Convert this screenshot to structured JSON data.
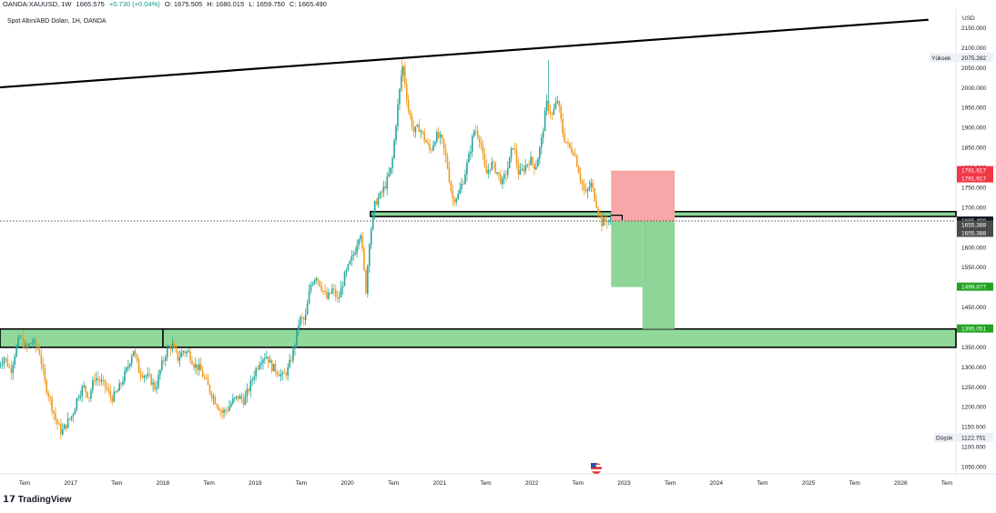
{
  "header": {
    "symbol": "OANDA:XAUUSD, 1W",
    "last": "1665.575",
    "change": "+0.730 (+0.04%)",
    "o": "O: 1675.505",
    "h": "H: 1680.015",
    "l": "L: 1659.750",
    "c": "C: 1665.490"
  },
  "subtitle": "Spot Altın/ABD Doları, 1H, OANDA",
  "brand": "TradingView",
  "colors": {
    "up": "#26a69a",
    "down": "#ef9a20",
    "zone": "#90d99a",
    "stop": "#f7a7a7",
    "target": "#8fd597",
    "trend": "#000000"
  },
  "chart_data": {
    "type": "candlestick",
    "title": "Spot Altın/ABD Doları, 1H, OANDA",
    "currency": "USD",
    "ylim": [
      1040,
      2180
    ],
    "y_ticks": [
      1050,
      1100,
      1150,
      1200,
      1250,
      1300,
      1350,
      1400,
      1450,
      1500,
      1550,
      1600,
      1650,
      1700,
      1750,
      1800,
      1850,
      1900,
      1950,
      2000,
      2050,
      2100,
      2150
    ],
    "y_tick_labels": [
      "1050.000",
      "1100.000",
      "1150.000",
      "1200.000",
      "1250.000",
      "1300.000",
      "1350.000",
      "1400.000",
      "1450.000",
      "1500.000",
      "1550.000",
      "1600.000",
      "1650.000",
      "1700.000",
      "1750.000",
      "1800.000",
      "1850.000",
      "1900.000",
      "1950.000",
      "2000.000",
      "2050.000",
      "2100.000",
      "2150.000"
    ],
    "xlim": [
      2016.2,
      2026.9
    ],
    "x_ticks": [
      {
        "t": 2016.5,
        "label": "Tem"
      },
      {
        "t": 2017.0,
        "label": "2017"
      },
      {
        "t": 2017.5,
        "label": "Tem"
      },
      {
        "t": 2018.0,
        "label": "2018"
      },
      {
        "t": 2018.5,
        "label": "Tem"
      },
      {
        "t": 2019.0,
        "label": "2019"
      },
      {
        "t": 2019.5,
        "label": "Tem"
      },
      {
        "t": 2020.0,
        "label": "2020"
      },
      {
        "t": 2020.5,
        "label": "Tem"
      },
      {
        "t": 2021.0,
        "label": "2021"
      },
      {
        "t": 2021.5,
        "label": "Tem"
      },
      {
        "t": 2022.0,
        "label": "2022"
      },
      {
        "t": 2022.5,
        "label": "Tem"
      },
      {
        "t": 2023.0,
        "label": "2023"
      },
      {
        "t": 2023.5,
        "label": "Tem"
      },
      {
        "t": 2024.0,
        "label": "2024"
      },
      {
        "t": 2024.5,
        "label": "Tem"
      },
      {
        "t": 2025.0,
        "label": "2025"
      },
      {
        "t": 2025.5,
        "label": "Tem"
      },
      {
        "t": 2026.0,
        "label": "2026"
      },
      {
        "t": 2026.5,
        "label": "Tem"
      }
    ],
    "price_path": [
      [
        2016.22,
        1305
      ],
      [
        2016.28,
        1325
      ],
      [
        2016.35,
        1290
      ],
      [
        2016.4,
        1340
      ],
      [
        2016.45,
        1375
      ],
      [
        2016.52,
        1345
      ],
      [
        2016.58,
        1365
      ],
      [
        2016.66,
        1340
      ],
      [
        2016.72,
        1260
      ],
      [
        2016.78,
        1215
      ],
      [
        2016.84,
        1165
      ],
      [
        2016.9,
        1135
      ],
      [
        2016.96,
        1160
      ],
      [
        2017.02,
        1180
      ],
      [
        2017.08,
        1230
      ],
      [
        2017.14,
        1250
      ],
      [
        2017.2,
        1225
      ],
      [
        2017.26,
        1275
      ],
      [
        2017.32,
        1265
      ],
      [
        2017.38,
        1250
      ],
      [
        2017.44,
        1220
      ],
      [
        2017.5,
        1235
      ],
      [
        2017.56,
        1265
      ],
      [
        2017.62,
        1300
      ],
      [
        2017.68,
        1345
      ],
      [
        2017.74,
        1290
      ],
      [
        2017.8,
        1280
      ],
      [
        2017.86,
        1270
      ],
      [
        2017.92,
        1245
      ],
      [
        2017.98,
        1300
      ],
      [
        2018.04,
        1340
      ],
      [
        2018.1,
        1355
      ],
      [
        2018.16,
        1320
      ],
      [
        2018.22,
        1340
      ],
      [
        2018.28,
        1335
      ],
      [
        2018.34,
        1305
      ],
      [
        2018.4,
        1295
      ],
      [
        2018.46,
        1265
      ],
      [
        2018.52,
        1235
      ],
      [
        2018.58,
        1210
      ],
      [
        2018.64,
        1185
      ],
      [
        2018.7,
        1195
      ],
      [
        2018.76,
        1215
      ],
      [
        2018.82,
        1225
      ],
      [
        2018.88,
        1215
      ],
      [
        2018.94,
        1250
      ],
      [
        2019.0,
        1290
      ],
      [
        2019.06,
        1320
      ],
      [
        2019.12,
        1330
      ],
      [
        2019.18,
        1300
      ],
      [
        2019.24,
        1290
      ],
      [
        2019.3,
        1275
      ],
      [
        2019.36,
        1295
      ],
      [
        2019.42,
        1345
      ],
      [
        2019.48,
        1420
      ],
      [
        2019.54,
        1415
      ],
      [
        2019.6,
        1505
      ],
      [
        2019.66,
        1530
      ],
      [
        2019.72,
        1500
      ],
      [
        2019.78,
        1470
      ],
      [
        2019.84,
        1495
      ],
      [
        2019.9,
        1465
      ],
      [
        2019.96,
        1520
      ],
      [
        2020.02,
        1555
      ],
      [
        2020.08,
        1590
      ],
      [
        2020.14,
        1645
      ],
      [
        2020.2,
        1490
      ],
      [
        2020.24,
        1620
      ],
      [
        2020.3,
        1710
      ],
      [
        2020.36,
        1730
      ],
      [
        2020.42,
        1760
      ],
      [
        2020.48,
        1800
      ],
      [
        2020.54,
        1940
      ],
      [
        2020.6,
        2060
      ],
      [
        2020.66,
        1945
      ],
      [
        2020.72,
        1890
      ],
      [
        2020.78,
        1900
      ],
      [
        2020.84,
        1870
      ],
      [
        2020.9,
        1840
      ],
      [
        2020.96,
        1880
      ],
      [
        2021.02,
        1870
      ],
      [
        2021.08,
        1810
      ],
      [
        2021.14,
        1720
      ],
      [
        2021.2,
        1730
      ],
      [
        2021.26,
        1770
      ],
      [
        2021.32,
        1830
      ],
      [
        2021.38,
        1900
      ],
      [
        2021.44,
        1870
      ],
      [
        2021.5,
        1780
      ],
      [
        2021.56,
        1810
      ],
      [
        2021.62,
        1790
      ],
      [
        2021.68,
        1760
      ],
      [
        2021.74,
        1800
      ],
      [
        2021.8,
        1860
      ],
      [
        2021.86,
        1780
      ],
      [
        2021.92,
        1800
      ],
      [
        2021.98,
        1820
      ],
      [
        2022.04,
        1800
      ],
      [
        2022.1,
        1860
      ],
      [
        2022.16,
        1960
      ],
      [
        2022.22,
        1930
      ],
      [
        2022.28,
        1970
      ],
      [
        2022.34,
        1880
      ],
      [
        2022.4,
        1850
      ],
      [
        2022.46,
        1840
      ],
      [
        2022.52,
        1780
      ],
      [
        2022.58,
        1730
      ],
      [
        2022.64,
        1760
      ],
      [
        2022.7,
        1710
      ],
      [
        2022.76,
        1660
      ],
      [
        2022.82,
        1670
      ],
      [
        2022.86,
        1665
      ]
    ],
    "trendline": {
      "from": [
        2016.2,
        2000
      ],
      "to": [
        2026.3,
        2170
      ]
    },
    "zones": [
      {
        "from": 2020.25,
        "to": 2026.9,
        "low": 1677,
        "high": 1689,
        "color": "zone"
      },
      {
        "from": 2016.2,
        "to": 2026.9,
        "low": 1349,
        "high": 1395,
        "color": "zone"
      }
    ],
    "position": {
      "stop": {
        "from": 2022.86,
        "to": 2023.55,
        "low": 1665,
        "high": 1792
      },
      "target1": {
        "from": 2022.86,
        "to": 2023.2,
        "low": 1500,
        "high": 1665
      },
      "target2": {
        "from": 2023.2,
        "to": 2023.55,
        "low": 1395,
        "high": 1665
      }
    },
    "current_price": 1665.49,
    "price_labels": [
      {
        "value": 1791.917,
        "text": "1791.917",
        "color": "#f23645"
      },
      {
        "value": 1791.917,
        "text": "1791.917",
        "color": "#f23645",
        "offset": 1
      },
      {
        "value": 1665.49,
        "text": "1665.490",
        "color": "#131722"
      },
      {
        "value": 1665.49,
        "text": "2d 4h",
        "color": "#131722",
        "offset": 1
      },
      {
        "value": 1655.388,
        "text": "1655.388",
        "color": "#4a4a4a"
      },
      {
        "value": 1655.388,
        "text": "1655.388",
        "color": "#4a4a4a",
        "offset": 1
      },
      {
        "value": 1499.877,
        "text": "1499.877",
        "color": "#22a322"
      },
      {
        "value": 1395.051,
        "text": "1395.051",
        "color": "#22a322"
      }
    ],
    "high_marker": {
      "label": "Yüksek",
      "value": "2075.282",
      "at": 2075.282
    },
    "low_marker": {
      "label": "Düşük",
      "value": "1122.751",
      "at": 1122.751
    }
  }
}
